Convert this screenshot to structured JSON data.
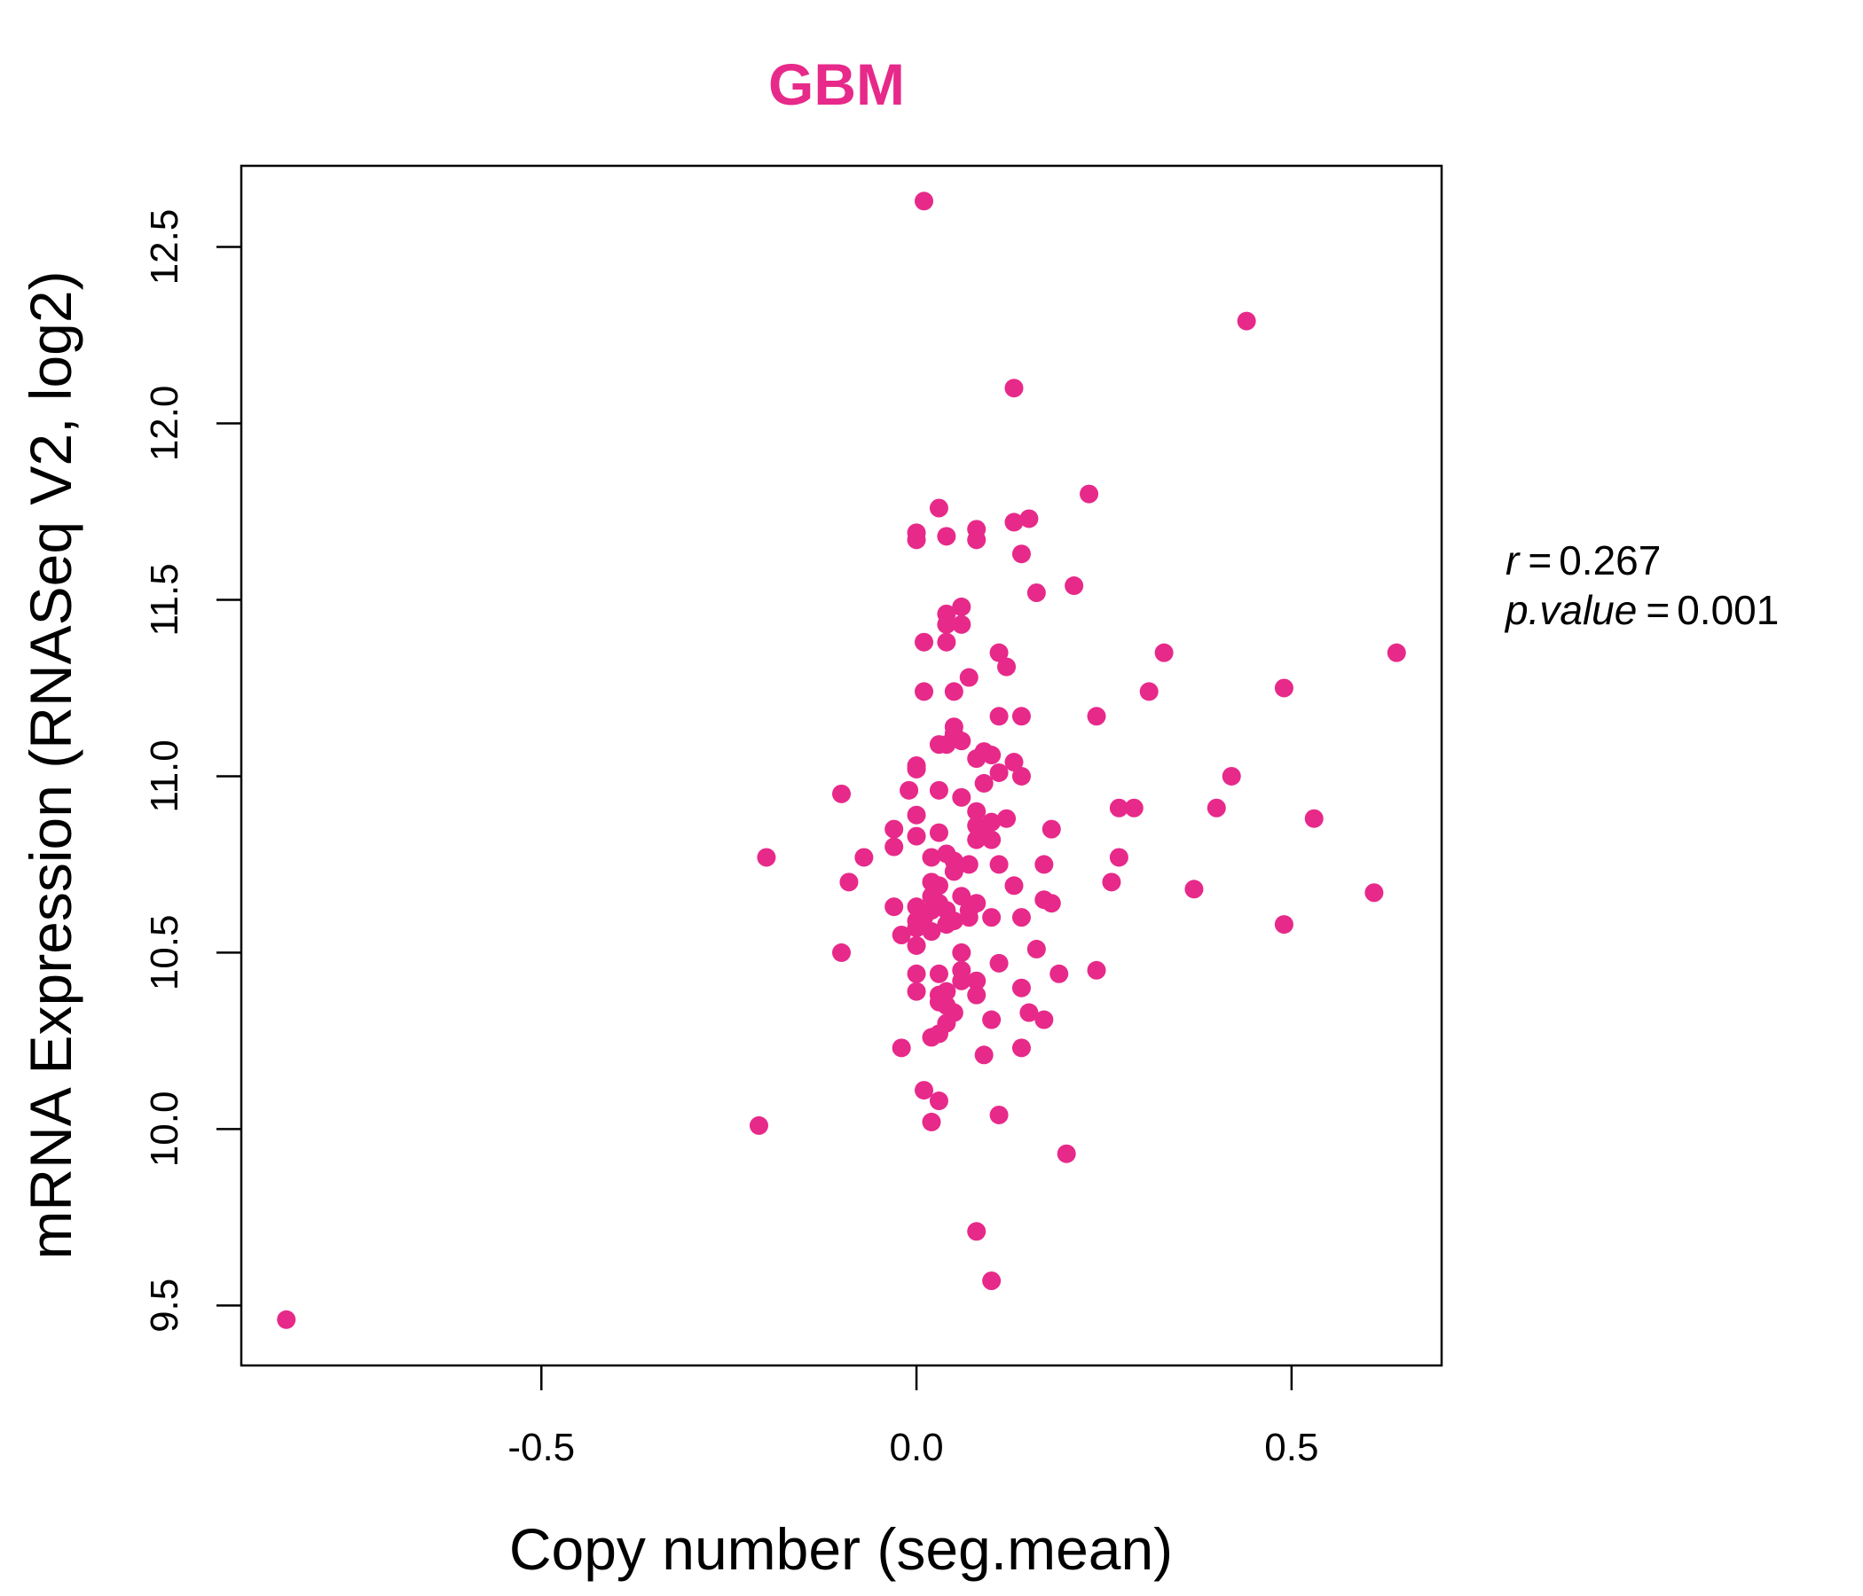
{
  "chart_data": {
    "type": "scatter",
    "title": "GBM",
    "xlabel": "Copy number (seg.mean)",
    "ylabel": "mRNA Expression (RNASeq V2, log2)",
    "xlim": [
      -0.9,
      0.7
    ],
    "ylim": [
      9.33,
      12.73
    ],
    "x_ticks": [
      -0.5,
      0.0,
      0.5
    ],
    "x_tick_labels": [
      "-0.5",
      "0.0",
      "0.5"
    ],
    "y_ticks": [
      9.5,
      10.0,
      10.5,
      11.0,
      11.5,
      12.0,
      12.5
    ],
    "y_tick_labels": [
      "9.5",
      "10.0",
      "10.5",
      "11.0",
      "11.5",
      "12.0",
      "12.5"
    ],
    "grid": false,
    "legend": "none",
    "point_color": "#E7298A",
    "annotation": {
      "r_symbol": "r",
      "r_value": "0.267",
      "p_symbol": "p.value",
      "p_value": "0.001",
      "eq": "="
    },
    "points": [
      [
        -0.84,
        9.46
      ],
      [
        -0.21,
        10.01
      ],
      [
        -0.2,
        10.77
      ],
      [
        -0.1,
        10.95
      ],
      [
        -0.1,
        10.5
      ],
      [
        -0.09,
        10.7
      ],
      [
        -0.07,
        10.77
      ],
      [
        -0.03,
        10.85
      ],
      [
        -0.03,
        10.8
      ],
      [
        -0.03,
        10.63
      ],
      [
        -0.02,
        10.55
      ],
      [
        -0.02,
        10.23
      ],
      [
        -0.01,
        10.96
      ],
      [
        0.0,
        11.69
      ],
      [
        0.0,
        11.67
      ],
      [
        0.0,
        11.03
      ],
      [
        0.0,
        11.02
      ],
      [
        0.0,
        10.89
      ],
      [
        0.0,
        10.83
      ],
      [
        0.0,
        10.63
      ],
      [
        0.0,
        10.59
      ],
      [
        0.0,
        10.57
      ],
      [
        0.0,
        10.52
      ],
      [
        0.0,
        10.44
      ],
      [
        0.0,
        10.39
      ],
      [
        0.01,
        11.38
      ],
      [
        0.01,
        11.24
      ],
      [
        0.01,
        10.6
      ],
      [
        0.01,
        10.11
      ],
      [
        0.01,
        12.63
      ],
      [
        0.02,
        10.77
      ],
      [
        0.02,
        10.7
      ],
      [
        0.02,
        10.66
      ],
      [
        0.02,
        10.62
      ],
      [
        0.02,
        10.56
      ],
      [
        0.02,
        10.26
      ],
      [
        0.02,
        10.02
      ],
      [
        0.03,
        11.09
      ],
      [
        0.03,
        10.96
      ],
      [
        0.03,
        10.84
      ],
      [
        0.03,
        10.69
      ],
      [
        0.03,
        10.64
      ],
      [
        0.03,
        10.44
      ],
      [
        0.03,
        10.38
      ],
      [
        0.03,
        10.36
      ],
      [
        0.03,
        10.27
      ],
      [
        0.03,
        10.08
      ],
      [
        0.03,
        11.76
      ],
      [
        0.04,
        11.46
      ],
      [
        0.04,
        11.43
      ],
      [
        0.04,
        11.38
      ],
      [
        0.04,
        11.09
      ],
      [
        0.04,
        10.78
      ],
      [
        0.04,
        10.62
      ],
      [
        0.04,
        10.58
      ],
      [
        0.04,
        10.39
      ],
      [
        0.04,
        10.35
      ],
      [
        0.04,
        10.3
      ],
      [
        0.04,
        11.68
      ],
      [
        0.05,
        11.14
      ],
      [
        0.05,
        11.12
      ],
      [
        0.05,
        10.76
      ],
      [
        0.05,
        10.73
      ],
      [
        0.05,
        10.59
      ],
      [
        0.05,
        10.33
      ],
      [
        0.05,
        11.24
      ],
      [
        0.06,
        11.48
      ],
      [
        0.06,
        11.43
      ],
      [
        0.06,
        11.1
      ],
      [
        0.06,
        10.94
      ],
      [
        0.06,
        10.66
      ],
      [
        0.06,
        10.5
      ],
      [
        0.06,
        10.45
      ],
      [
        0.06,
        10.42
      ],
      [
        0.07,
        11.28
      ],
      [
        0.07,
        10.75
      ],
      [
        0.07,
        10.62
      ],
      [
        0.07,
        10.6
      ],
      [
        0.08,
        11.7
      ],
      [
        0.08,
        11.67
      ],
      [
        0.08,
        11.05
      ],
      [
        0.08,
        10.9
      ],
      [
        0.08,
        10.86
      ],
      [
        0.08,
        10.82
      ],
      [
        0.08,
        10.64
      ],
      [
        0.08,
        10.42
      ],
      [
        0.08,
        10.38
      ],
      [
        0.08,
        9.71
      ],
      [
        0.09,
        11.07
      ],
      [
        0.09,
        10.98
      ],
      [
        0.09,
        10.85
      ],
      [
        0.09,
        10.21
      ],
      [
        0.1,
        11.06
      ],
      [
        0.1,
        10.87
      ],
      [
        0.1,
        10.82
      ],
      [
        0.1,
        10.6
      ],
      [
        0.1,
        10.31
      ],
      [
        0.1,
        9.57
      ],
      [
        0.11,
        11.35
      ],
      [
        0.11,
        11.17
      ],
      [
        0.11,
        11.01
      ],
      [
        0.11,
        10.75
      ],
      [
        0.11,
        10.47
      ],
      [
        0.11,
        10.04
      ],
      [
        0.12,
        11.31
      ],
      [
        0.12,
        10.88
      ],
      [
        0.13,
        11.72
      ],
      [
        0.13,
        12.1
      ],
      [
        0.13,
        11.04
      ],
      [
        0.13,
        10.69
      ],
      [
        0.14,
        10.6
      ],
      [
        0.14,
        11.63
      ],
      [
        0.14,
        11.17
      ],
      [
        0.14,
        11.0
      ],
      [
        0.14,
        10.4
      ],
      [
        0.14,
        10.23
      ],
      [
        0.15,
        11.73
      ],
      [
        0.15,
        10.33
      ],
      [
        0.16,
        11.52
      ],
      [
        0.16,
        10.51
      ],
      [
        0.17,
        10.75
      ],
      [
        0.17,
        10.65
      ],
      [
        0.17,
        10.31
      ],
      [
        0.18,
        10.85
      ],
      [
        0.18,
        10.64
      ],
      [
        0.19,
        10.44
      ],
      [
        0.2,
        9.93
      ],
      [
        0.21,
        11.54
      ],
      [
        0.23,
        11.8
      ],
      [
        0.24,
        11.17
      ],
      [
        0.24,
        10.45
      ],
      [
        0.26,
        10.7
      ],
      [
        0.27,
        10.91
      ],
      [
        0.27,
        10.77
      ],
      [
        0.29,
        10.91
      ],
      [
        0.31,
        11.24
      ],
      [
        0.33,
        11.35
      ],
      [
        0.37,
        10.68
      ],
      [
        0.4,
        10.91
      ],
      [
        0.42,
        11.0
      ],
      [
        0.44,
        12.29
      ],
      [
        0.49,
        11.25
      ],
      [
        0.49,
        10.58
      ],
      [
        0.53,
        10.88
      ],
      [
        0.61,
        10.67
      ],
      [
        0.64,
        11.35
      ]
    ]
  }
}
